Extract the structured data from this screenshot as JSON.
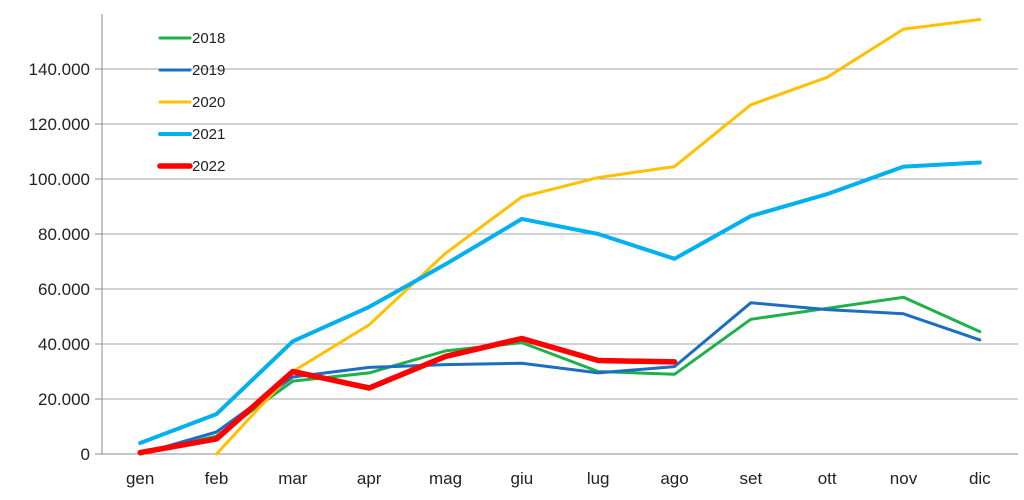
{
  "chart_data": {
    "type": "line",
    "title": "",
    "xlabel": "",
    "ylabel": "",
    "categories": [
      "gen",
      "feb",
      "mar",
      "apr",
      "mag",
      "giu",
      "lug",
      "ago",
      "set",
      "ott",
      "nov",
      "dic"
    ],
    "ylim": [
      0,
      160000
    ],
    "yticks": [
      0,
      20000,
      40000,
      60000,
      80000,
      100000,
      120000,
      140000
    ],
    "ytick_labels": [
      "0",
      "20.000",
      "40.000",
      "60.000",
      "80.000",
      "100.000",
      "120.000",
      "140.000"
    ],
    "grid": "horizontal",
    "legend_position": "top-left",
    "series": [
      {
        "name": "2018",
        "color": "#1eb04a",
        "width": 3,
        "values": [
          0,
          6500,
          26500,
          29500,
          37500,
          40500,
          30000,
          29000,
          49000,
          53000,
          57000,
          44500
        ]
      },
      {
        "name": "2019",
        "color": "#1b6ec2",
        "width": 3,
        "values": [
          0,
          8000,
          28000,
          31500,
          32500,
          33000,
          29500,
          31800,
          55000,
          52500,
          51000,
          41500
        ]
      },
      {
        "name": "2020",
        "color": "#ffc000",
        "width": 3,
        "values": [
          null,
          0,
          30000,
          47000,
          73000,
          93500,
          100500,
          104500,
          127000,
          137000,
          154500,
          158000
        ]
      },
      {
        "name": "2021",
        "color": "#00b0f0",
        "width": 4,
        "values": [
          4000,
          14500,
          41000,
          53500,
          69000,
          85500,
          80000,
          71000,
          86500,
          94500,
          104500,
          106000
        ]
      },
      {
        "name": "2022",
        "color": "#ff0000",
        "width": 5.5,
        "values": [
          500,
          5500,
          30000,
          24000,
          35500,
          42000,
          34000,
          33500,
          null,
          null,
          null,
          null
        ]
      }
    ]
  }
}
